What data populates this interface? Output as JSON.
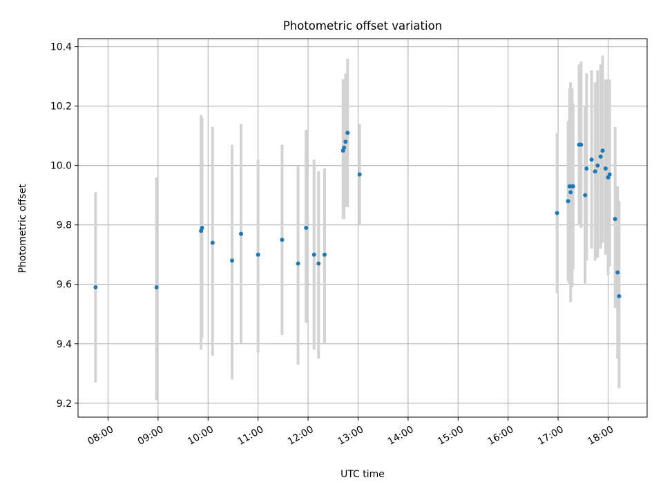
{
  "chart_data": {
    "type": "scatter",
    "title": "Photometric offset variation",
    "xlabel": "UTC time",
    "ylabel": "Photometric offset",
    "x_unit": "UTC hours",
    "xlim": [
      7.4,
      18.78
    ],
    "ylim": [
      9.153,
      10.427
    ],
    "x_ticks": [
      {
        "value": 8,
        "label": "08:00"
      },
      {
        "value": 9,
        "label": "09:00"
      },
      {
        "value": 10,
        "label": "10:00"
      },
      {
        "value": 11,
        "label": "11:00"
      },
      {
        "value": 12,
        "label": "12:00"
      },
      {
        "value": 13,
        "label": "13:00"
      },
      {
        "value": 14,
        "label": "14:00"
      },
      {
        "value": 15,
        "label": "15:00"
      },
      {
        "value": 16,
        "label": "16:00"
      },
      {
        "value": 17,
        "label": "17:00"
      },
      {
        "value": 18,
        "label": "18:00"
      }
    ],
    "y_ticks": [
      {
        "value": 9.2,
        "label": "9.2"
      },
      {
        "value": 9.4,
        "label": "9.4"
      },
      {
        "value": 9.6,
        "label": "9.6"
      },
      {
        "value": 9.8,
        "label": "9.8"
      },
      {
        "value": 10.0,
        "label": "10.0"
      },
      {
        "value": 10.2,
        "label": "10.2"
      },
      {
        "value": 10.4,
        "label": "10.4"
      }
    ],
    "grid": true,
    "legend": null,
    "colors": {
      "point": "#1f77b4",
      "errorbar": "#d3d3d3",
      "grid": "#b0b0b0"
    },
    "points": [
      {
        "x": 7.75,
        "y": 9.59,
        "ylow": 9.27,
        "yhigh": 9.91
      },
      {
        "x": 8.97,
        "y": 9.59,
        "ylow": 9.21,
        "yhigh": 9.96
      },
      {
        "x": 9.86,
        "y": 9.78,
        "ylow": 9.38,
        "yhigh": 10.17
      },
      {
        "x": 9.88,
        "y": 9.79,
        "ylow": 9.42,
        "yhigh": 10.16
      },
      {
        "x": 10.09,
        "y": 9.74,
        "ylow": 9.36,
        "yhigh": 10.13
      },
      {
        "x": 10.48,
        "y": 9.68,
        "ylow": 9.28,
        "yhigh": 10.07
      },
      {
        "x": 10.66,
        "y": 9.77,
        "ylow": 9.4,
        "yhigh": 10.14
      },
      {
        "x": 11.0,
        "y": 9.7,
        "ylow": 9.37,
        "yhigh": 10.02
      },
      {
        "x": 11.48,
        "y": 9.75,
        "ylow": 9.43,
        "yhigh": 10.07
      },
      {
        "x": 11.8,
        "y": 9.67,
        "ylow": 9.33,
        "yhigh": 10.0
      },
      {
        "x": 11.96,
        "y": 9.79,
        "ylow": 9.47,
        "yhigh": 10.12
      },
      {
        "x": 12.12,
        "y": 9.7,
        "ylow": 9.38,
        "yhigh": 10.02
      },
      {
        "x": 12.21,
        "y": 9.67,
        "ylow": 9.35,
        "yhigh": 9.98
      },
      {
        "x": 12.33,
        "y": 9.7,
        "ylow": 9.4,
        "yhigh": 9.99
      },
      {
        "x": 12.7,
        "y": 10.05,
        "ylow": 9.82,
        "yhigh": 10.29
      },
      {
        "x": 12.72,
        "y": 10.06,
        "ylow": 9.82,
        "yhigh": 10.29
      },
      {
        "x": 12.75,
        "y": 10.08,
        "ylow": 9.86,
        "yhigh": 10.31
      },
      {
        "x": 12.79,
        "y": 10.11,
        "ylow": 9.86,
        "yhigh": 10.36
      },
      {
        "x": 13.03,
        "y": 9.97,
        "ylow": 9.8,
        "yhigh": 10.14
      },
      {
        "x": 16.98,
        "y": 9.84,
        "ylow": 9.57,
        "yhigh": 10.11
      },
      {
        "x": 17.2,
        "y": 9.88,
        "ylow": 9.61,
        "yhigh": 10.15
      },
      {
        "x": 17.23,
        "y": 9.93,
        "ylow": 9.6,
        "yhigh": 10.26
      },
      {
        "x": 17.25,
        "y": 9.91,
        "ylow": 9.54,
        "yhigh": 10.28
      },
      {
        "x": 17.28,
        "y": 9.93,
        "ylow": 9.59,
        "yhigh": 10.26
      },
      {
        "x": 17.3,
        "y": 9.93,
        "ylow": 9.65,
        "yhigh": 10.21
      },
      {
        "x": 17.42,
        "y": 10.07,
        "ylow": 9.8,
        "yhigh": 10.34
      },
      {
        "x": 17.46,
        "y": 10.07,
        "ylow": 9.79,
        "yhigh": 10.35
      },
      {
        "x": 17.54,
        "y": 9.9,
        "ylow": 9.6,
        "yhigh": 10.2
      },
      {
        "x": 17.57,
        "y": 9.99,
        "ylow": 9.68,
        "yhigh": 10.31
      },
      {
        "x": 17.67,
        "y": 10.02,
        "ylow": 9.72,
        "yhigh": 10.32
      },
      {
        "x": 17.74,
        "y": 9.98,
        "ylow": 9.68,
        "yhigh": 10.28
      },
      {
        "x": 17.79,
        "y": 10.0,
        "ylow": 9.69,
        "yhigh": 10.32
      },
      {
        "x": 17.85,
        "y": 10.03,
        "ylow": 9.72,
        "yhigh": 10.34
      },
      {
        "x": 17.89,
        "y": 10.05,
        "ylow": 9.74,
        "yhigh": 10.37
      },
      {
        "x": 17.95,
        "y": 9.99,
        "ylow": 9.7,
        "yhigh": 10.29
      },
      {
        "x": 18.0,
        "y": 9.96,
        "ylow": 9.63,
        "yhigh": 10.29
      },
      {
        "x": 18.03,
        "y": 9.97,
        "ylow": 9.66,
        "yhigh": 10.29
      },
      {
        "x": 18.14,
        "y": 9.82,
        "ylow": 9.52,
        "yhigh": 10.13
      },
      {
        "x": 18.19,
        "y": 9.64,
        "ylow": 9.35,
        "yhigh": 9.93
      },
      {
        "x": 18.22,
        "y": 9.56,
        "ylow": 9.25,
        "yhigh": 9.88
      }
    ]
  }
}
